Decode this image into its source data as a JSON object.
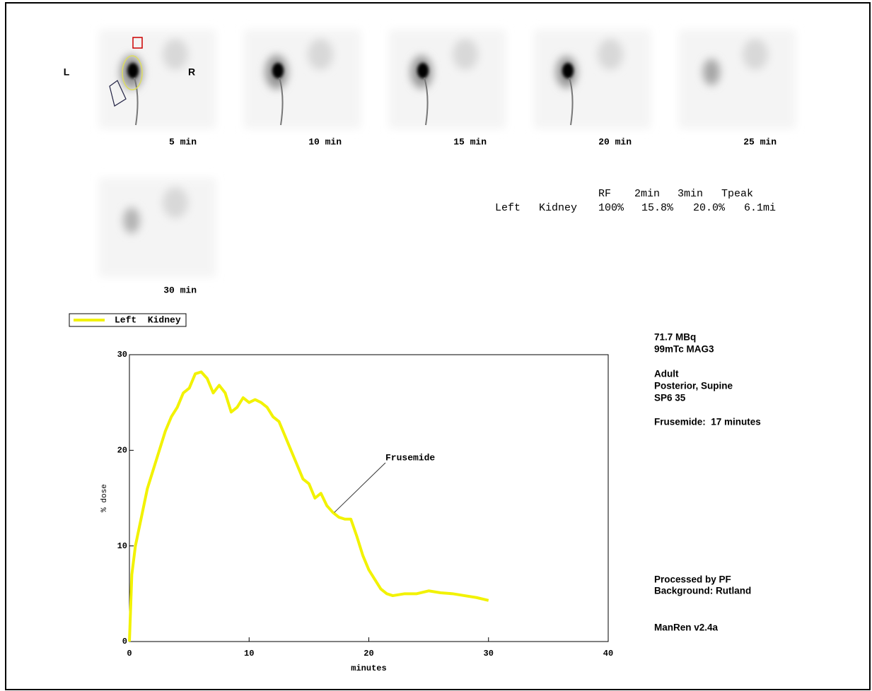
{
  "frame_labels": [
    "5 min",
    "10 min",
    "15 min",
    "20 min",
    "25 min",
    "30 min"
  ],
  "orientation": {
    "left": "L",
    "right": "R"
  },
  "table": {
    "header": [
      "RF",
      "2min",
      "3min",
      "Tpeak"
    ],
    "rows": [
      [
        "Left",
        "Kidney",
        "100%",
        "15.8%",
        "20.0%",
        "6.1mi"
      ]
    ]
  },
  "info": [
    "71.7 MBq",
    "99mTc MAG3",
    "Adult",
    "Posterior, Supine",
    "SP6 35",
    "Frusemide:  17 minutes",
    "Processed by PF",
    "Background: Rutland",
    "ManRen v2.4a"
  ],
  "chart_data": {
    "type": "line",
    "x_label": "minutes",
    "y_label": "% dose",
    "xlim": [
      0,
      40
    ],
    "xticks": [
      0,
      10,
      20,
      30,
      40
    ],
    "ylim": [
      0,
      30
    ],
    "yticks": [
      0,
      10,
      20,
      30
    ],
    "legend": "top-left",
    "series": [
      {
        "name": "Left  Kidney",
        "color": "#f2f200",
        "x": [
          0,
          0.2,
          0.5,
          1,
          1.5,
          2,
          2.5,
          3,
          3.5,
          4,
          4.5,
          5,
          5.5,
          6,
          6.5,
          7,
          7.5,
          8,
          8.5,
          9,
          9.5,
          10,
          10.5,
          11,
          11.5,
          12,
          12.5,
          13,
          13.5,
          14,
          14.5,
          15,
          15.5,
          16,
          16.5,
          17,
          17.5,
          18,
          18.5,
          19,
          19.5,
          20,
          20.5,
          21,
          21.5,
          22,
          23,
          24,
          25,
          26,
          27,
          28,
          29,
          30
        ],
        "values": [
          0,
          7,
          10,
          13,
          16,
          18,
          20,
          22,
          23.5,
          24.5,
          26,
          26.5,
          28,
          28.2,
          27.5,
          26,
          26.8,
          26,
          24,
          24.5,
          25.5,
          25,
          25.3,
          25,
          24.5,
          23.5,
          23,
          21.5,
          20,
          18.5,
          17,
          16.5,
          15,
          15.5,
          14.2,
          13.5,
          13,
          12.8,
          12.8,
          11,
          9,
          7.5,
          6.5,
          5.5,
          5,
          4.8,
          5,
          5,
          5.3,
          5.1,
          5,
          4.8,
          4.6,
          4.3
        ]
      }
    ],
    "annotation": {
      "text": "Frusemide",
      "x": 17,
      "y": 13.5
    }
  }
}
